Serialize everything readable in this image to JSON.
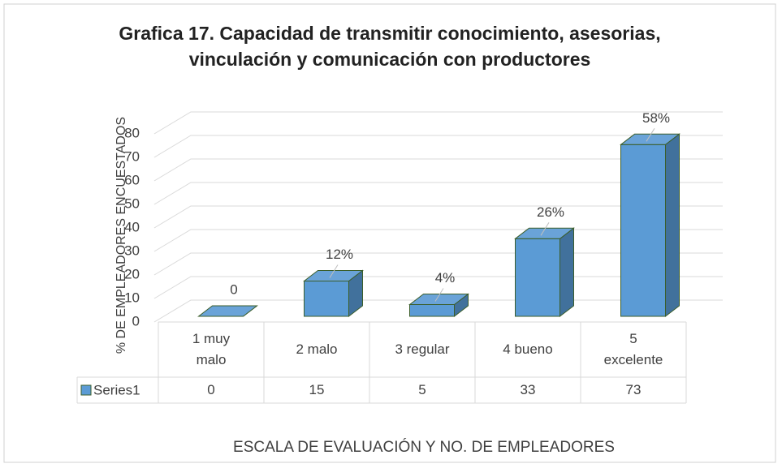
{
  "chart_data": {
    "type": "bar3d",
    "title": "Grafica 17. Capacidad de transmitir conocimiento, asesorias, vinculación y comunicación con productores",
    "ylabel": "% DE EMPLEADORES ENCUESTADOS",
    "xlabel": "ESCALA DE EVALUACIÓN Y NO. DE EMPLEADORES",
    "categories": [
      "1 muy malo",
      "2 malo",
      "3 regular",
      "4 bueno",
      "5 excelente"
    ],
    "series": [
      {
        "name": "Series1",
        "color": "#5b9bd5",
        "values": [
          0,
          15,
          5,
          33,
          73
        ],
        "value_labels": [
          "0",
          "12%",
          "4%",
          "26%",
          "58%"
        ]
      }
    ],
    "ylim": [
      0,
      80
    ],
    "yticks": [
      0,
      10,
      20,
      30,
      40,
      50,
      60,
      70,
      80
    ],
    "grid": true,
    "data_table": true
  }
}
